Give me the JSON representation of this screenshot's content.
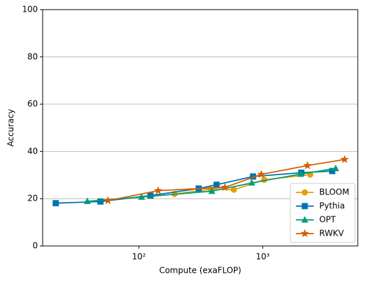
{
  "chart_data": {
    "type": "line",
    "xlabel": "Compute (exaFLOP)",
    "ylabel": "Accuracy",
    "xscale": "log",
    "xlim": [
      16.7,
      5850
    ],
    "ylim": [
      0,
      100
    ],
    "xticks": [
      {
        "value": 100,
        "label": "10²"
      },
      {
        "value": 1000,
        "label": "10³"
      }
    ],
    "yticks": [
      0,
      20,
      40,
      60,
      80,
      100
    ],
    "grid": true,
    "legend": "lower right",
    "series": [
      {
        "name": "BLOOM",
        "color": "#e69f00",
        "marker": "circle",
        "x": [
          194,
          380,
          584,
          1026,
          2415
        ],
        "values": [
          22,
          24,
          23.8,
          28,
          30.2
        ]
      },
      {
        "name": "Pythia",
        "color": "#0072b2",
        "marker": "square",
        "x": [
          21.3,
          48.9,
          124,
          304,
          424,
          835,
          2048,
          3638
        ],
        "values": [
          18.1,
          18.8,
          21.3,
          24.3,
          25.9,
          29.4,
          31,
          31.7
        ]
      },
      {
        "name": "OPT",
        "color": "#009e73",
        "marker": "triangle",
        "x": [
          38.3,
          105,
          388,
          815,
          2023,
          3882
        ],
        "values": [
          18.9,
          20.7,
          23.2,
          26.7,
          30.4,
          32.8
        ]
      },
      {
        "name": "RWKV",
        "color": "#d55e00",
        "marker": "star",
        "x": [
          56.2,
          143,
          495,
          975,
          2297,
          4581
        ],
        "values": [
          19.2,
          23.4,
          24.8,
          30.3,
          34,
          36.6
        ]
      }
    ]
  }
}
